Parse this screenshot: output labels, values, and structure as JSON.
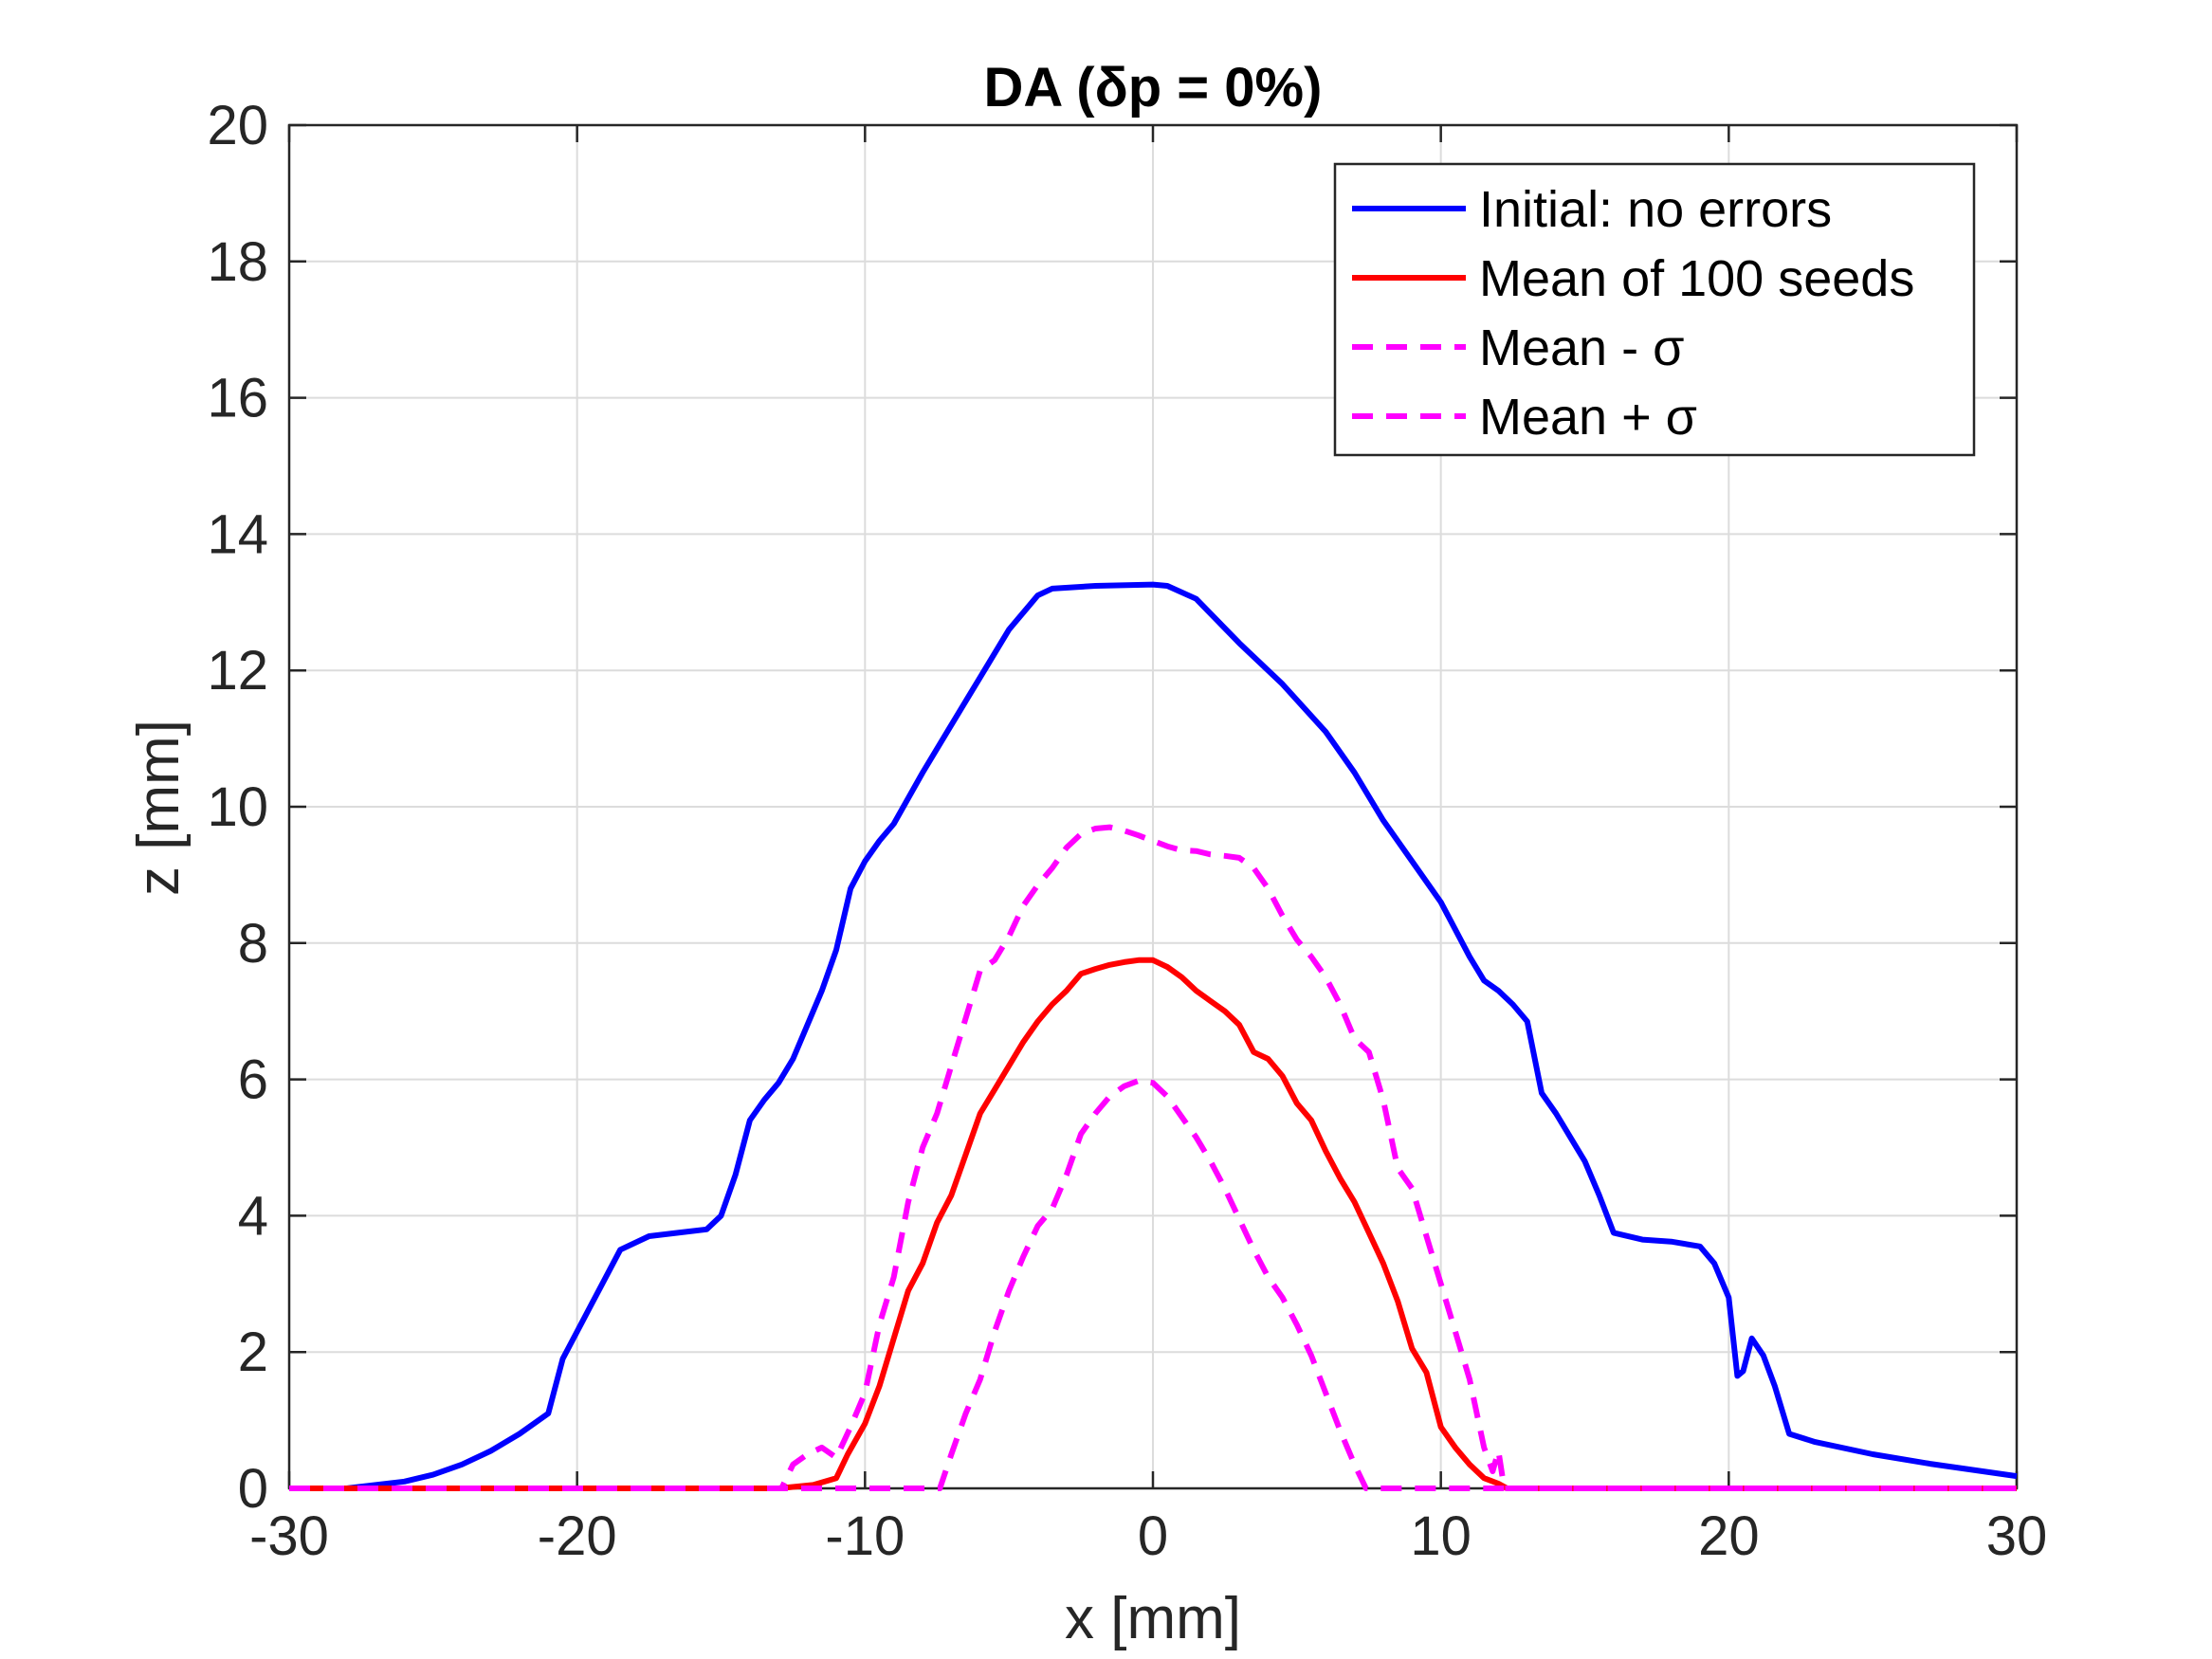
{
  "chart_data": {
    "type": "line",
    "title": "DA (δp = 0%)",
    "xlabel": "x [mm]",
    "ylabel": "z [mm]",
    "xlim": [
      -30,
      30
    ],
    "ylim": [
      0,
      20
    ],
    "xticks": [
      -30,
      -20,
      -10,
      0,
      10,
      20,
      30
    ],
    "yticks": [
      0,
      2,
      4,
      6,
      8,
      10,
      12,
      14,
      16,
      18,
      20
    ],
    "grid": true,
    "legend_position": "top-right",
    "series": [
      {
        "name": "Initial: no errors",
        "color": "#0000ff",
        "style": "solid",
        "points": [
          [
            -30,
            0
          ],
          [
            -28,
            0
          ],
          [
            -26,
            0.1
          ],
          [
            -25,
            0.2
          ],
          [
            -24,
            0.35
          ],
          [
            -23,
            0.55
          ],
          [
            -22,
            0.8
          ],
          [
            -21,
            1.1
          ],
          [
            -20.5,
            1.9
          ],
          [
            -19.5,
            2.7
          ],
          [
            -18.5,
            3.5
          ],
          [
            -17.5,
            3.7
          ],
          [
            -16.5,
            3.75
          ],
          [
            -15.5,
            3.8
          ],
          [
            -15,
            4.0
          ],
          [
            -14.5,
            4.6
          ],
          [
            -14,
            5.4
          ],
          [
            -13.5,
            5.7
          ],
          [
            -13,
            5.95
          ],
          [
            -12.5,
            6.3
          ],
          [
            -12,
            6.8
          ],
          [
            -11.5,
            7.3
          ],
          [
            -11,
            7.9
          ],
          [
            -10.5,
            8.8
          ],
          [
            -10,
            9.2
          ],
          [
            -9.5,
            9.5
          ],
          [
            -9,
            9.75
          ],
          [
            -8,
            10.5
          ],
          [
            -7,
            11.2
          ],
          [
            -6,
            11.9
          ],
          [
            -5,
            12.6
          ],
          [
            -4,
            13.1
          ],
          [
            -3.5,
            13.2
          ],
          [
            -2,
            13.24
          ],
          [
            0,
            13.26
          ],
          [
            0.5,
            13.24
          ],
          [
            1.5,
            13.05
          ],
          [
            3,
            12.4
          ],
          [
            4.5,
            11.8
          ],
          [
            6,
            11.1
          ],
          [
            7,
            10.5
          ],
          [
            8,
            9.8
          ],
          [
            9,
            9.2
          ],
          [
            10,
            8.6
          ],
          [
            11,
            7.8
          ],
          [
            11.5,
            7.45
          ],
          [
            12,
            7.3
          ],
          [
            12.5,
            7.1
          ],
          [
            13,
            6.85
          ],
          [
            13.5,
            5.8
          ],
          [
            14,
            5.5
          ],
          [
            15,
            4.8
          ],
          [
            15.5,
            4.3
          ],
          [
            16,
            3.75
          ],
          [
            17,
            3.65
          ],
          [
            18,
            3.62
          ],
          [
            19,
            3.55
          ],
          [
            19.5,
            3.3
          ],
          [
            20,
            2.8
          ],
          [
            20.3,
            1.65
          ],
          [
            20.5,
            1.72
          ],
          [
            20.8,
            2.2
          ],
          [
            21.2,
            1.95
          ],
          [
            21.6,
            1.5
          ],
          [
            22.1,
            0.8
          ],
          [
            23,
            0.68
          ],
          [
            25,
            0.5
          ],
          [
            27,
            0.36
          ],
          [
            30,
            0.18
          ]
        ]
      },
      {
        "name": "Mean of 100 seeds",
        "color": "#ff0000",
        "style": "solid",
        "points": [
          [
            -30,
            0
          ],
          [
            -13,
            0
          ],
          [
            -11.8,
            0.05
          ],
          [
            -11,
            0.15
          ],
          [
            -10.6,
            0.5
          ],
          [
            -10,
            0.95
          ],
          [
            -9.5,
            1.5
          ],
          [
            -9,
            2.2
          ],
          [
            -8.5,
            2.9
          ],
          [
            -8,
            3.3
          ],
          [
            -7.5,
            3.9
          ],
          [
            -7,
            4.3
          ],
          [
            -6.5,
            4.9
          ],
          [
            -6,
            5.5
          ],
          [
            -5.5,
            5.85
          ],
          [
            -5,
            6.2
          ],
          [
            -4.5,
            6.55
          ],
          [
            -4,
            6.85
          ],
          [
            -3.5,
            7.1
          ],
          [
            -3,
            7.3
          ],
          [
            -2.5,
            7.55
          ],
          [
            -2,
            7.62
          ],
          [
            -1.5,
            7.68
          ],
          [
            -1,
            7.72
          ],
          [
            -0.5,
            7.75
          ],
          [
            0,
            7.75
          ],
          [
            0.5,
            7.65
          ],
          [
            1,
            7.5
          ],
          [
            1.5,
            7.3
          ],
          [
            2,
            7.15
          ],
          [
            2.5,
            7.0
          ],
          [
            3,
            6.8
          ],
          [
            3.5,
            6.4
          ],
          [
            4,
            6.3
          ],
          [
            4.5,
            6.05
          ],
          [
            5,
            5.65
          ],
          [
            5.5,
            5.4
          ],
          [
            6,
            4.95
          ],
          [
            6.5,
            4.55
          ],
          [
            7,
            4.2
          ],
          [
            7.5,
            3.75
          ],
          [
            8,
            3.3
          ],
          [
            8.5,
            2.75
          ],
          [
            9,
            2.05
          ],
          [
            9.5,
            1.7
          ],
          [
            10,
            0.9
          ],
          [
            10.5,
            0.6
          ],
          [
            11,
            0.35
          ],
          [
            11.5,
            0.15
          ],
          [
            12,
            0.07
          ],
          [
            12.3,
            0
          ],
          [
            30,
            0
          ]
        ]
      },
      {
        "name": "Mean - σ",
        "color": "#ff00ff",
        "style": "dashed",
        "points": [
          [
            -30,
            0
          ],
          [
            -7.4,
            0
          ],
          [
            -7,
            0.5
          ],
          [
            -6.5,
            1.1
          ],
          [
            -6,
            1.6
          ],
          [
            -5.5,
            2.3
          ],
          [
            -5,
            2.9
          ],
          [
            -4.5,
            3.4
          ],
          [
            -4,
            3.85
          ],
          [
            -3.5,
            4.1
          ],
          [
            -3,
            4.6
          ],
          [
            -2.5,
            5.2
          ],
          [
            -2,
            5.5
          ],
          [
            -1.5,
            5.75
          ],
          [
            -1,
            5.9
          ],
          [
            -0.5,
            5.98
          ],
          [
            0,
            5.95
          ],
          [
            0.5,
            5.75
          ],
          [
            1,
            5.45
          ],
          [
            1.5,
            5.15
          ],
          [
            2,
            4.8
          ],
          [
            2.5,
            4.4
          ],
          [
            3,
            3.95
          ],
          [
            3.5,
            3.5
          ],
          [
            4,
            3.1
          ],
          [
            4.5,
            2.8
          ],
          [
            5,
            2.4
          ],
          [
            5.5,
            1.95
          ],
          [
            6,
            1.4
          ],
          [
            6.5,
            0.85
          ],
          [
            7,
            0.35
          ],
          [
            7.4,
            0
          ],
          [
            30,
            0
          ]
        ]
      },
      {
        "name": "Mean + σ",
        "color": "#ff00ff",
        "style": "dashed",
        "points": [
          [
            -30,
            0
          ],
          [
            -12.9,
            0
          ],
          [
            -12.5,
            0.35
          ],
          [
            -12,
            0.5
          ],
          [
            -11.5,
            0.6
          ],
          [
            -11,
            0.45
          ],
          [
            -10.5,
            0.9
          ],
          [
            -10,
            1.4
          ],
          [
            -9.5,
            2.4
          ],
          [
            -9,
            3.1
          ],
          [
            -8.5,
            4.2
          ],
          [
            -8,
            5.0
          ],
          [
            -7.5,
            5.5
          ],
          [
            -7,
            6.2
          ],
          [
            -6.5,
            6.9
          ],
          [
            -6,
            7.6
          ],
          [
            -5.5,
            7.75
          ],
          [
            -5,
            8.1
          ],
          [
            -4.5,
            8.55
          ],
          [
            -4,
            8.85
          ],
          [
            -3.5,
            9.1
          ],
          [
            -3,
            9.4
          ],
          [
            -2.5,
            9.6
          ],
          [
            -2,
            9.68
          ],
          [
            -1.5,
            9.7
          ],
          [
            -1,
            9.65
          ],
          [
            -0.5,
            9.58
          ],
          [
            0,
            9.5
          ],
          [
            0.5,
            9.42
          ],
          [
            1,
            9.36
          ],
          [
            1.5,
            9.35
          ],
          [
            2,
            9.3
          ],
          [
            2.5,
            9.28
          ],
          [
            3,
            9.25
          ],
          [
            3.5,
            9.1
          ],
          [
            4,
            8.8
          ],
          [
            4.5,
            8.4
          ],
          [
            5,
            8.05
          ],
          [
            5.5,
            7.8
          ],
          [
            6,
            7.5
          ],
          [
            6.5,
            7.1
          ],
          [
            7,
            6.6
          ],
          [
            7.5,
            6.4
          ],
          [
            8,
            5.7
          ],
          [
            8.5,
            4.7
          ],
          [
            9,
            4.4
          ],
          [
            9.5,
            3.7
          ],
          [
            10,
            3.0
          ],
          [
            10.5,
            2.3
          ],
          [
            11,
            1.6
          ],
          [
            11.5,
            0.6
          ],
          [
            11.8,
            0.25
          ],
          [
            12,
            0.55
          ],
          [
            12.2,
            0
          ],
          [
            30,
            0
          ]
        ]
      }
    ]
  }
}
